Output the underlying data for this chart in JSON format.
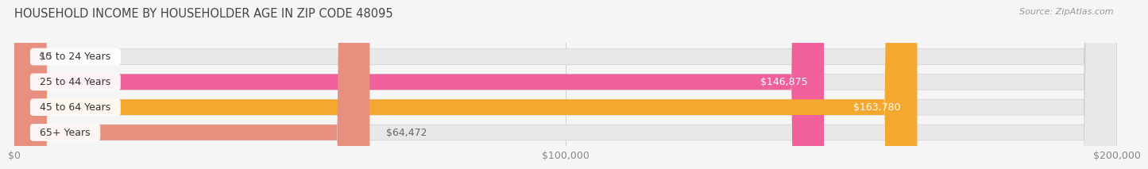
{
  "title": "HOUSEHOLD INCOME BY HOUSEHOLDER AGE IN ZIP CODE 48095",
  "source": "Source: ZipAtlas.com",
  "categories": [
    "15 to 24 Years",
    "25 to 44 Years",
    "45 to 64 Years",
    "65+ Years"
  ],
  "values": [
    0,
    146875,
    163780,
    64472
  ],
  "bar_colors": [
    "#b0b0d8",
    "#f0609a",
    "#f5a830",
    "#e89080"
  ],
  "bar_bg_color": "#e8e8e8",
  "value_label_colors": [
    "#666666",
    "#ffffff",
    "#ffffff",
    "#666666"
  ],
  "xlim": [
    0,
    200000
  ],
  "xticks": [
    0,
    100000,
    200000
  ],
  "xtick_labels": [
    "$0",
    "$100,000",
    "$200,000"
  ],
  "value_labels": [
    "$0",
    "$146,875",
    "$163,780",
    "$64,472"
  ],
  "bar_height": 0.62,
  "bg_color": "#f5f5f5",
  "title_fontsize": 10.5,
  "source_fontsize": 8,
  "cat_label_fontsize": 9,
  "value_label_fontsize": 9,
  "tick_fontsize": 9
}
